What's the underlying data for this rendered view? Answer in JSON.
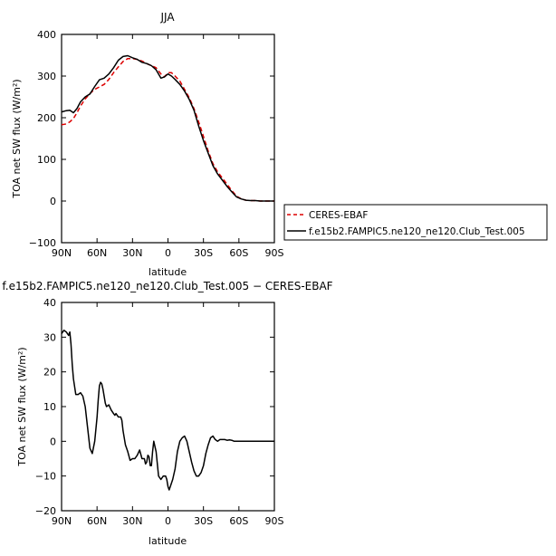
{
  "chart_data": [
    {
      "type": "line",
      "title": "JJA",
      "xlabel": "latitude",
      "ylabel": "TOA net SW flux (W/m²)",
      "ylim": [
        -100,
        400
      ],
      "xlim": [
        90,
        -90
      ],
      "x_ticks": [
        90,
        60,
        30,
        0,
        -30,
        -60,
        -90
      ],
      "x_tick_labels": [
        "90N",
        "60N",
        "30N",
        "0",
        "30S",
        "60S",
        "90S"
      ],
      "y_ticks": [
        -100,
        0,
        100,
        200,
        300,
        400
      ],
      "y_tick_labels": [
        "−100",
        "0",
        "100",
        "200",
        "300",
        "400"
      ],
      "legend_position": "right",
      "series": [
        {
          "name": "CERES-EBAF",
          "color": "#dd0000",
          "dash": "dashed",
          "x": [
            90,
            86,
            83,
            80,
            77,
            74,
            70,
            66,
            62,
            58,
            54,
            50,
            46,
            42,
            38,
            34,
            30,
            26,
            22,
            18,
            14,
            10,
            6,
            3,
            0,
            -3,
            -6,
            -10,
            -14,
            -18,
            -22,
            -26,
            -30,
            -34,
            -38,
            -42,
            -46,
            -50,
            -54,
            -58,
            -62,
            -66,
            -70,
            -74,
            -78,
            -82,
            -86,
            -90
          ],
          "y": [
            183,
            185,
            190,
            198,
            212,
            228,
            245,
            258,
            268,
            274,
            280,
            292,
            308,
            322,
            335,
            342,
            342,
            340,
            336,
            330,
            325,
            320,
            305,
            298,
            308,
            308,
            300,
            288,
            268,
            248,
            222,
            190,
            155,
            120,
            90,
            70,
            55,
            40,
            25,
            12,
            5,
            2,
            1,
            1,
            0,
            0,
            0,
            0
          ]
        },
        {
          "name": "f.e15b2.FAMPIC5.ne120_ne120.Club_Test.005",
          "color": "#000000",
          "dash": "solid",
          "x": [
            90,
            86,
            83,
            80,
            77,
            74,
            70,
            66,
            62,
            58,
            54,
            50,
            46,
            42,
            38,
            34,
            30,
            26,
            22,
            18,
            14,
            10,
            6,
            3,
            0,
            -3,
            -6,
            -10,
            -14,
            -18,
            -22,
            -26,
            -30,
            -34,
            -38,
            -42,
            -46,
            -50,
            -54,
            -58,
            -62,
            -66,
            -70,
            -74,
            -78,
            -82,
            -86,
            -90
          ],
          "y": [
            214,
            217,
            218,
            212,
            222,
            238,
            250,
            257,
            275,
            291,
            295,
            305,
            320,
            338,
            347,
            349,
            344,
            340,
            333,
            330,
            325,
            315,
            295,
            298,
            305,
            300,
            292,
            280,
            264,
            244,
            218,
            180,
            145,
            115,
            85,
            65,
            50,
            35,
            22,
            10,
            5,
            2,
            1,
            1,
            0,
            0,
            0,
            0
          ]
        }
      ]
    },
    {
      "type": "line",
      "title": "f.e15b2.FAMPIC5.ne120_ne120.Club_Test.005 − CERES-EBAF",
      "xlabel": "latitude",
      "ylabel": "TOA net SW flux (W/m²)",
      "ylim": [
        -20,
        40
      ],
      "xlim": [
        90,
        -90
      ],
      "x_ticks": [
        90,
        60,
        30,
        0,
        -30,
        -60,
        -90
      ],
      "x_tick_labels": [
        "90N",
        "60N",
        "30N",
        "0",
        "30S",
        "60S",
        "90S"
      ],
      "y_ticks": [
        -20,
        -10,
        0,
        10,
        20,
        30,
        40
      ],
      "y_tick_labels": [
        "−20",
        "−10",
        "0",
        "10",
        "20",
        "30",
        "40"
      ],
      "series": [
        {
          "color": "#000000",
          "dash": "solid",
          "x": [
            90,
            88,
            86,
            84,
            83,
            82,
            81,
            80,
            78,
            76,
            74,
            72,
            70,
            68,
            66,
            64,
            62,
            60,
            59,
            58,
            57,
            56,
            55,
            54,
            53,
            52,
            50,
            48,
            46,
            45,
            44,
            42,
            40,
            39,
            38,
            36,
            34,
            32,
            30,
            28,
            26,
            24,
            22,
            20,
            19,
            18,
            17,
            16,
            15,
            14,
            13,
            12,
            10,
            8,
            6,
            4,
            2,
            1,
            0,
            -1,
            -2,
            -4,
            -6,
            -8,
            -10,
            -12,
            -14,
            -16,
            -18,
            -20,
            -22,
            -24,
            -26,
            -28,
            -30,
            -32,
            -34,
            -36,
            -38,
            -40,
            -42,
            -44,
            -46,
            -48,
            -50,
            -52,
            -54,
            -56,
            -58,
            -60,
            -62,
            -64,
            -66,
            -68,
            -70,
            -72,
            -74,
            -76,
            -78,
            -80,
            -82,
            -84,
            -86,
            -88,
            -90
          ],
          "y": [
            31,
            32,
            31.5,
            30.5,
            31.5,
            28,
            22,
            18,
            13.5,
            13.5,
            14,
            13,
            10,
            4,
            -2,
            -3.5,
            0,
            7,
            12,
            16,
            17,
            16.5,
            15,
            13,
            11,
            10,
            10.5,
            9,
            8,
            7.5,
            8,
            7,
            7,
            6,
            3,
            -1,
            -3,
            -5.5,
            -5,
            -5,
            -4,
            -2.5,
            -5,
            -5,
            -6.5,
            -6,
            -4,
            -4.5,
            -7,
            -7,
            -3,
            0,
            -3,
            -10,
            -11,
            -10,
            -10,
            -11,
            -13,
            -14,
            -13,
            -11,
            -8,
            -3,
            0,
            1,
            1.5,
            0,
            -3,
            -6,
            -8.5,
            -10,
            -10,
            -9,
            -7,
            -3.5,
            -1,
            1,
            1.5,
            0.5,
            0,
            0.5,
            0.5,
            0.5,
            0.3,
            0.4,
            0.3,
            0,
            0,
            0,
            0,
            0,
            0,
            0,
            0,
            0,
            0,
            0,
            0,
            0,
            0,
            0,
            0,
            0,
            0
          ]
        }
      ]
    }
  ]
}
